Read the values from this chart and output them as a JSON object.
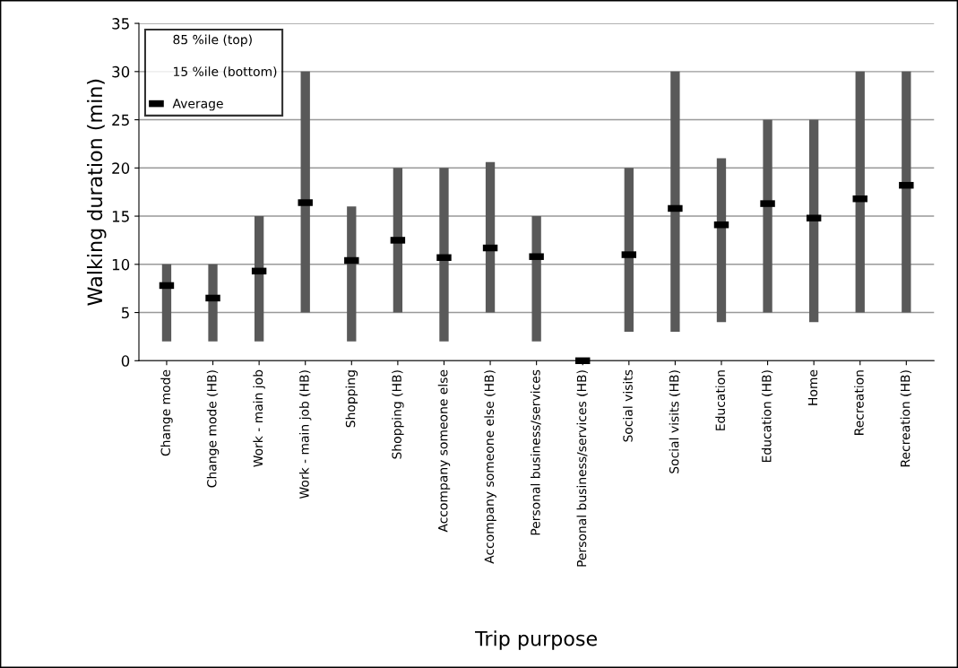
{
  "chart_data": {
    "type": "bar",
    "xlabel": "Trip purpose",
    "ylabel": "Walking duration (min)",
    "categories": [
      "Change mode",
      "Change mode (HB)",
      "Work - main job",
      "Work - main job (HB)",
      "Shopping",
      "Shopping (HB)",
      "Accompany someone else",
      "Accompany someone else (HB)",
      "Personal business/services",
      "Personal business/services (HB)",
      "Social visits",
      "Social visits (HB)",
      "Education",
      "Education (HB)",
      "Home",
      "Recreation",
      "Recreation (HB)"
    ],
    "series": [
      {
        "color": "#595959",
        "base": [
          2,
          2,
          2,
          5,
          2,
          5,
          2,
          5,
          2,
          null,
          3,
          3,
          4,
          5,
          4,
          5,
          5
        ],
        "values": [
          8,
          8,
          13,
          25,
          14,
          15,
          18,
          15.6,
          13,
          null,
          17,
          27,
          17,
          20,
          21,
          25,
          25
        ]
      },
      {
        "type": "scatter",
        "name": "Average",
        "color": "#000000",
        "values": [
          7.8,
          6.5,
          9.3,
          16.4,
          10.4,
          12.5,
          10.7,
          11.7,
          10.8,
          0,
          11,
          15.8,
          14.1,
          16.3,
          14.8,
          16.8,
          18.2
        ]
      }
    ],
    "annotations": [
      "85 %ile (top)",
      "15 %ile (bottom)"
    ],
    "ylim": [
      0,
      35
    ],
    "yticks": [
      0,
      5,
      10,
      15,
      20,
      25,
      30,
      35
    ],
    "grid": "y",
    "legend": "top left"
  }
}
